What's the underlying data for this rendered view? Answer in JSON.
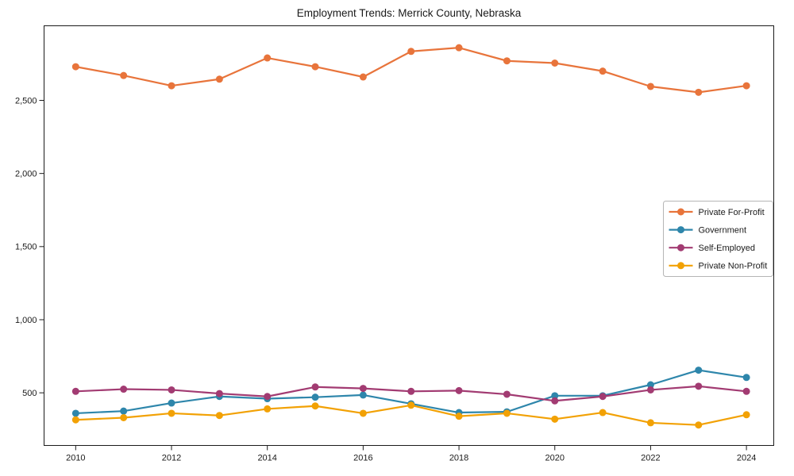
{
  "chart_data": {
    "type": "line",
    "title": "Employment Trends: Merrick County, Nebraska",
    "x": [
      2010,
      2011,
      2012,
      2013,
      2014,
      2015,
      2016,
      2017,
      2018,
      2019,
      2020,
      2021,
      2022,
      2023,
      2024
    ],
    "series": [
      {
        "name": "Private For-Profit",
        "color": "#E8743B",
        "values": [
          2730,
          2670,
          2600,
          2645,
          2790,
          2730,
          2660,
          2835,
          2860,
          2770,
          2755,
          2700,
          2595,
          2555,
          2600
        ]
      },
      {
        "name": "Government",
        "color": "#2E86AB",
        "values": [
          360,
          375,
          430,
          475,
          460,
          470,
          485,
          425,
          365,
          370,
          480,
          480,
          555,
          655,
          605
        ]
      },
      {
        "name": "Self-Employed",
        "color": "#A23B72",
        "values": [
          510,
          525,
          520,
          495,
          475,
          540,
          530,
          510,
          515,
          490,
          445,
          475,
          520,
          545,
          510
        ]
      },
      {
        "name": "Private Non-Profit",
        "color": "#F2A104",
        "values": [
          315,
          330,
          360,
          345,
          390,
          410,
          360,
          415,
          340,
          360,
          320,
          365,
          295,
          280,
          350
        ]
      }
    ],
    "xticks": [
      2010,
      2012,
      2014,
      2016,
      2018,
      2020,
      2022,
      2024
    ],
    "yticks": [
      500,
      1000,
      1500,
      2000,
      2500
    ],
    "xlim": [
      2009.34,
      2024.57
    ],
    "ylim": [
      140,
      3010
    ],
    "grid": false,
    "legend_position": "right-middle",
    "legend_border_color": "#b5b5b5",
    "axis_color": "#1b1b1b",
    "xlabel": "",
    "ylabel": ""
  }
}
